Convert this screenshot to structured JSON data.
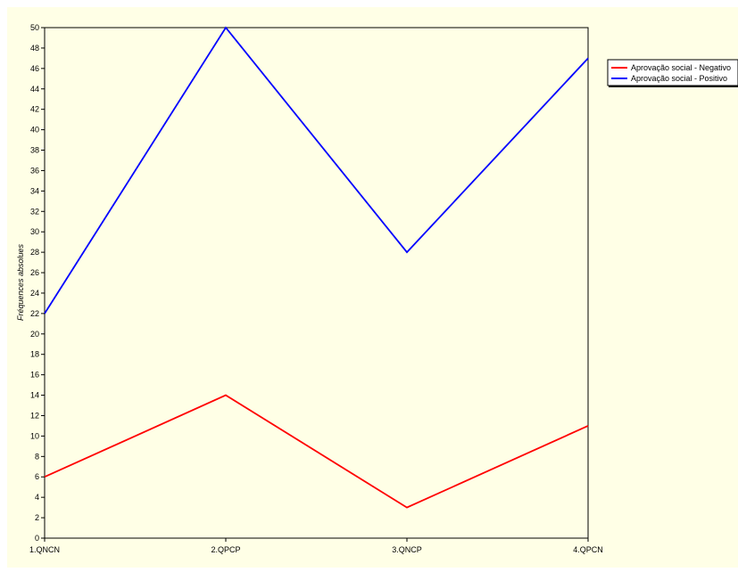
{
  "chart_data": {
    "type": "line",
    "title": "",
    "xlabel": "",
    "ylabel": "Fréquences absolues",
    "categories": [
      "1.QNCN",
      "2.QPCP",
      "3.QNCP",
      "4.QPCN"
    ],
    "series": [
      {
        "name": "Aprovação social - Negativo",
        "values": [
          6,
          14,
          3,
          11
        ],
        "color": "#ff0000"
      },
      {
        "name": "Aprovação social - Positivo",
        "values": [
          22,
          50,
          28,
          47
        ],
        "color": "#0000ff"
      }
    ],
    "ylim": [
      0,
      50
    ],
    "ytick_step": 2,
    "grid": true,
    "legend_position": "right-top",
    "colors": {
      "plot_background": "#ffffe6",
      "panel_background": "#ffffff",
      "grid": "#808080",
      "axis": "#000000"
    }
  }
}
